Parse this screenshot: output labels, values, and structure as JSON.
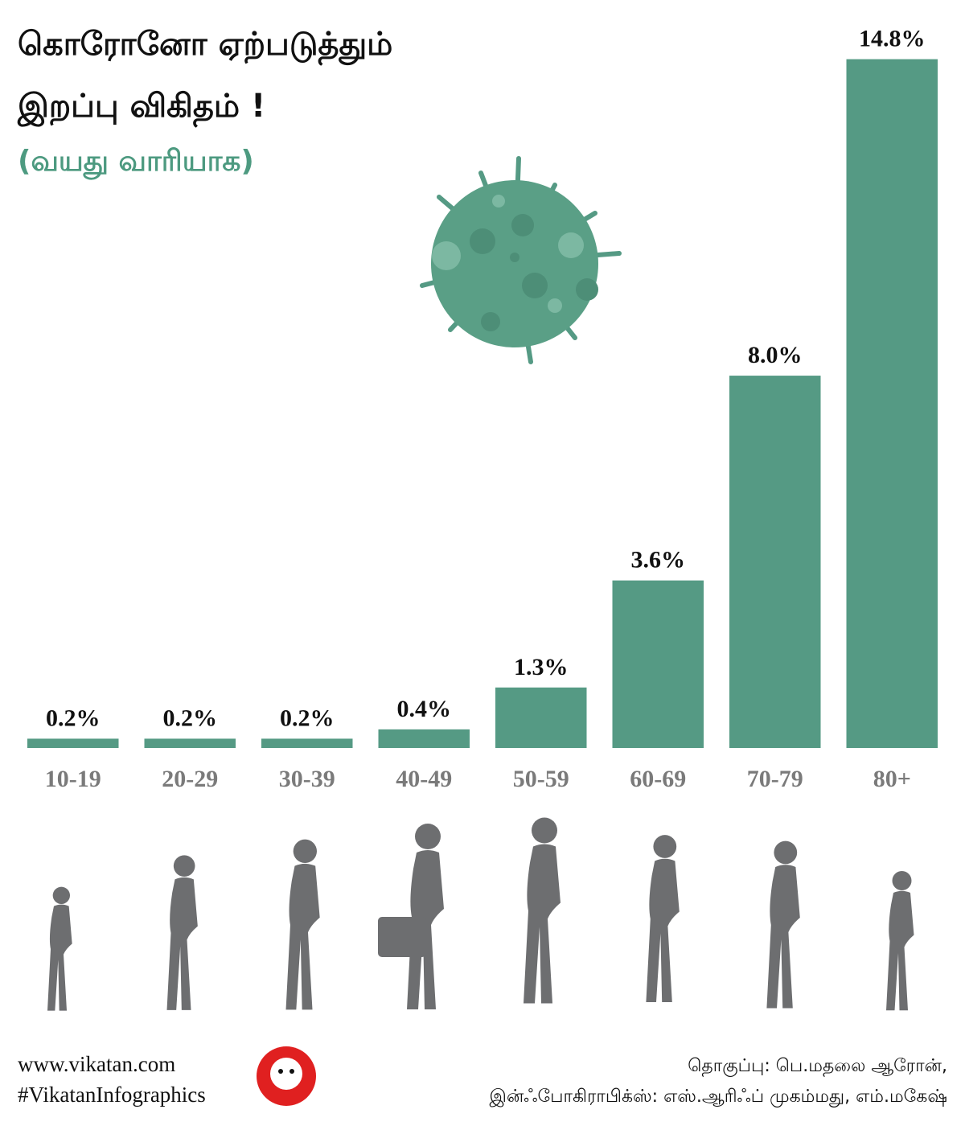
{
  "title_lines": [
    "கொரோனோ ஏற்படுத்தும்",
    "இறப்பு விகிதம் !"
  ],
  "subtitle": "(வயது வாரியாக)",
  "chart_data": {
    "type": "bar",
    "categories": [
      "10-19",
      "20-29",
      "30-39",
      "40-49",
      "50-59",
      "60-69",
      "70-79",
      "80+"
    ],
    "values": [
      0.2,
      0.2,
      0.2,
      0.4,
      1.3,
      3.6,
      8.0,
      14.8
    ],
    "value_labels": [
      "0.2%",
      "0.2%",
      "0.2%",
      "0.4%",
      "1.3%",
      "3.6%",
      "8.0%",
      "14.8%"
    ],
    "color": "#559a84",
    "ylim": [
      0,
      15
    ]
  },
  "footer": {
    "website": "www.vikatan.com",
    "hashtag": "#VikatanInfographics",
    "credits": [
      "தொகுப்பு: பெ.மதலை ஆரோன்,",
      "இன்ஃபோகிராபிக்ஸ்: எஸ்.ஆரிஃப் முகம்மது, எம்.மகேஷ்"
    ]
  }
}
